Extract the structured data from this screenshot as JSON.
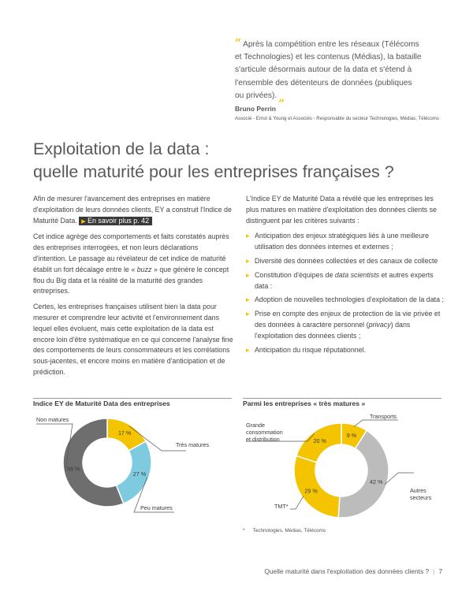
{
  "quote": {
    "text_lines": [
      "Après la compétition entre les réseaux (Télécoms",
      "et Technologies) et les contenus (Médias), la bataille",
      "s'articule désormais autour de la data et s'étend à",
      "l'ensemble des détenteurs de données (publiques",
      "ou privées)."
    ],
    "author": "Bruno Perrin",
    "role": "Associé - Ernst & Young et Associés - Responsable du secteur Technologies, Médias, Télécoms"
  },
  "title": {
    "line1": "Exploitation de la data :",
    "line2": "quelle maturité pour les entreprises françaises ?"
  },
  "left_column": {
    "p1_text": "Afin de mesurer l'avancement des entreprises en matière d'exploitation de leurs données clients, EY a construit l'Indice de Maturité Data.",
    "p1_link": "En savoir plus p. 42",
    "p2_before": "Cet indice agrège des comportements et faits constatés auprès des entreprises interrogées, et non leurs déclarations d'intention. Le passage au révélateur de cet indice de maturité établit un fort décalage entre le « ",
    "p2_italic": "buzz",
    "p2_after": " » que génère le concept flou du Big data et la réalité de la maturité des grandes entreprises.",
    "p3": "Certes, les entreprises françaises utilisent bien la data pour mesurer et comprendre leur activité et l'environnement dans lequel elles évoluent, mais cette exploitation de la data est encore loin d'être systématique en ce qui concerne l'analyse fine des comportements de leurs consommateurs et les corrélations sous-jacentes, et encore moins en matière d'anticipation et de prédiction."
  },
  "right_column": {
    "intro": "L'Indice EY de Maturité Data a révélé que les entreprises les plus matures en matière d'exploitation des données clients se distinguent par les critères suivants :",
    "b1": "Anticipation des enjeux stratégiques liés à une meilleure utilisation des données internes et externes ;",
    "b2": "Diversité des données collectées et des canaux de collecte",
    "b3_before": "Constitution d'équipes de ",
    "b3_italic": "data scientists",
    "b3_after": " et autres experts data :",
    "b4": "Adoption de nouvelles technologies d'exploitation de la data ;",
    "b5_before": "Prise en compte des enjeux de protection de la vie privée et des données à caractère personnel (",
    "b5_italic": "privacy",
    "b5_after": ") dans l'exploitation des données clients ;",
    "b6": "Anticipation du risque réputationnel."
  },
  "chart_left": {
    "heading": "Indice EY de Maturité Data des entreprises"
  },
  "chart_right": {
    "heading": "Parmi les entreprises « très matures »",
    "footnote_mark": "*",
    "footnote": "Technologies, Médias, Télécoms"
  },
  "chart_data": [
    {
      "type": "pie",
      "title": "Indice EY de Maturité Data des entreprises",
      "categories": [
        "Très matures",
        "Peu matures",
        "Non matures"
      ],
      "values": [
        17,
        27,
        56
      ],
      "value_labels": [
        "17 %",
        "27 %",
        "56 %"
      ],
      "colors": [
        "#f5c400",
        "#7ecbe0",
        "#6e6e6e"
      ]
    },
    {
      "type": "pie",
      "title": "Parmi les entreprises « très matures »",
      "categories": [
        "Transports",
        "Autres secteurs",
        "TMT*",
        "Grande consommation et distribution"
      ],
      "values": [
        9,
        42,
        29,
        20
      ],
      "value_labels": [
        "9 %",
        "42 %",
        "29 %",
        "20 %"
      ],
      "colors": [
        "#f5c400",
        "#bcbcbc",
        "#f5c400",
        "#f5c400"
      ]
    }
  ],
  "footer": {
    "text": "Quelle maturité dans l'exploitation des données clients ?",
    "page": "7"
  }
}
